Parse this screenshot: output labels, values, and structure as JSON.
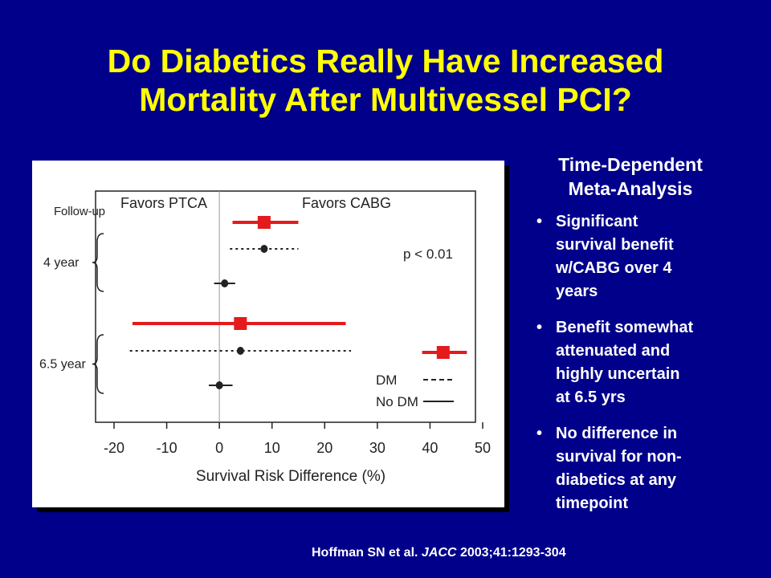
{
  "slide": {
    "title_line1": "Do Diabetics Really Have Increased",
    "title_line2": "Mortality After Multivessel PCI?",
    "side_heading_line1": "Time-Dependent",
    "side_heading_line2": "Meta-Analysis",
    "bullets": [
      {
        "line1": "Significant",
        "line2": "survival benefit",
        "line3": "w/CABG over 4",
        "line4": "years"
      },
      {
        "line1": "Benefit somewhat",
        "line2": "attenuated and",
        "line3": "highly uncertain",
        "line4": "at 6.5 yrs"
      },
      {
        "line1": "No difference in",
        "line2": "survival for non-",
        "line3": "diabetics at any",
        "line4": "timepoint"
      }
    ],
    "bullet_symbol": "•",
    "citation_authors": "Hoffman SN et al.",
    "citation_journal": "JACC",
    "citation_ref": "2003;41:1293-304",
    "colors": {
      "background": "#00008b",
      "title": "#ffff00",
      "text": "#ffffff",
      "highlight": "#e41a1c"
    }
  },
  "chart_data": {
    "type": "forest",
    "xlabel": "Survival Risk Difference (%)",
    "xlim": [
      -20,
      50
    ],
    "xticks": [
      -20,
      -10,
      0,
      10,
      20,
      30,
      40,
      50
    ],
    "left_header": "Favors PTCA",
    "right_header": "Favors CABG",
    "row_header": "Follow-up",
    "groups": [
      {
        "label": "4 year"
      },
      {
        "label": "6.5 year"
      }
    ],
    "annotation": "p < 0.01",
    "rows": [
      {
        "group": "4 year",
        "series": "overall",
        "estimate": 8.5,
        "ci": [
          2.5,
          15
        ],
        "highlighted": true
      },
      {
        "group": "4 year",
        "series": "DM",
        "estimate": 8.5,
        "ci": [
          2,
          15
        ],
        "highlighted": false
      },
      {
        "group": "4 year",
        "series": "No DM",
        "estimate": 1,
        "ci": [
          -1,
          3
        ],
        "highlighted": false
      },
      {
        "group": "6.5 year",
        "series": "overall",
        "estimate": 4,
        "ci": [
          -16.5,
          24
        ],
        "highlighted": true
      },
      {
        "group": "6.5 year",
        "series": "DM",
        "estimate": 4,
        "ci": [
          -17,
          25
        ],
        "highlighted": false
      },
      {
        "group": "6.5 year",
        "series": "No DM",
        "estimate": 0,
        "ci": [
          -2,
          2.5
        ],
        "highlighted": false
      }
    ],
    "legend": [
      {
        "name": "DM",
        "style": "dashed"
      },
      {
        "name": "No DM",
        "style": "solid"
      }
    ],
    "legend_marker": {
      "estimate": 42.5,
      "ci": [
        38.5,
        47
      ]
    }
  }
}
